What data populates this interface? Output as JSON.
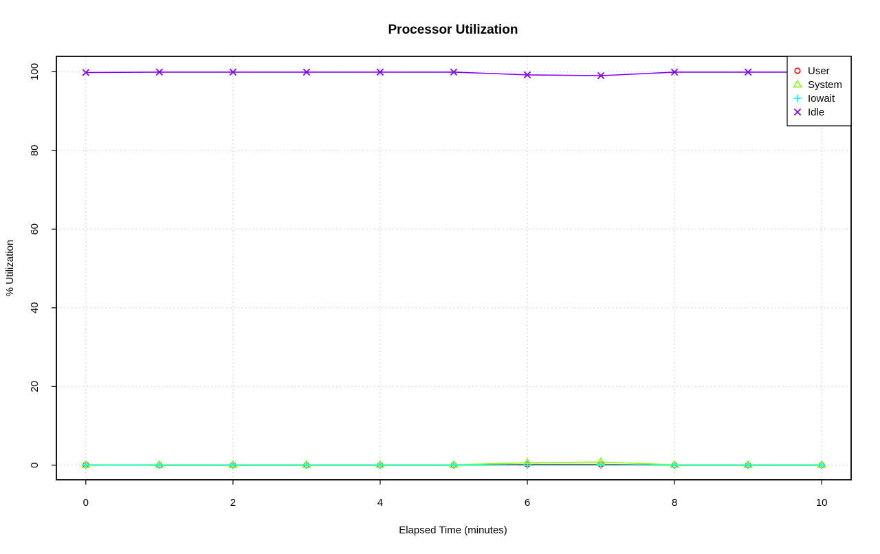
{
  "chart_data": {
    "type": "line",
    "title": "Processor Utilization",
    "xlabel": "Elapsed Time (minutes)",
    "ylabel": "% Utilization",
    "x": [
      0,
      1,
      2,
      3,
      4,
      5,
      6,
      7,
      8,
      9,
      10
    ],
    "xlim": [
      -0.4,
      10.4
    ],
    "ylim": [
      -3.7,
      103.9
    ],
    "xticks": [
      0,
      2,
      4,
      6,
      8,
      10
    ],
    "yticks": [
      0,
      20,
      40,
      60,
      80,
      100
    ],
    "grid": true,
    "legend_position": "top-right",
    "series": [
      {
        "name": "User",
        "color": "#FF0000",
        "marker": "circle",
        "values": [
          0.1,
          0.0,
          0.0,
          0.0,
          0.0,
          0.0,
          0.2,
          0.2,
          0.0,
          0.0,
          0.0
        ]
      },
      {
        "name": "System",
        "color": "#80FF00",
        "marker": "triangle",
        "values": [
          0.1,
          0.1,
          0.1,
          0.1,
          0.1,
          0.1,
          0.6,
          0.8,
          0.1,
          0.1,
          0.1
        ]
      },
      {
        "name": "Iowait",
        "color": "#00FFFF",
        "marker": "plus",
        "values": [
          0.0,
          0.0,
          0.0,
          0.0,
          0.0,
          0.0,
          0.0,
          0.0,
          0.0,
          0.0,
          0.0
        ]
      },
      {
        "name": "Idle",
        "color": "#8000FF",
        "marker": "cross",
        "values": [
          99.8,
          99.9,
          99.9,
          99.9,
          99.9,
          99.9,
          99.2,
          99.0,
          99.9,
          99.9,
          99.9
        ]
      }
    ]
  }
}
